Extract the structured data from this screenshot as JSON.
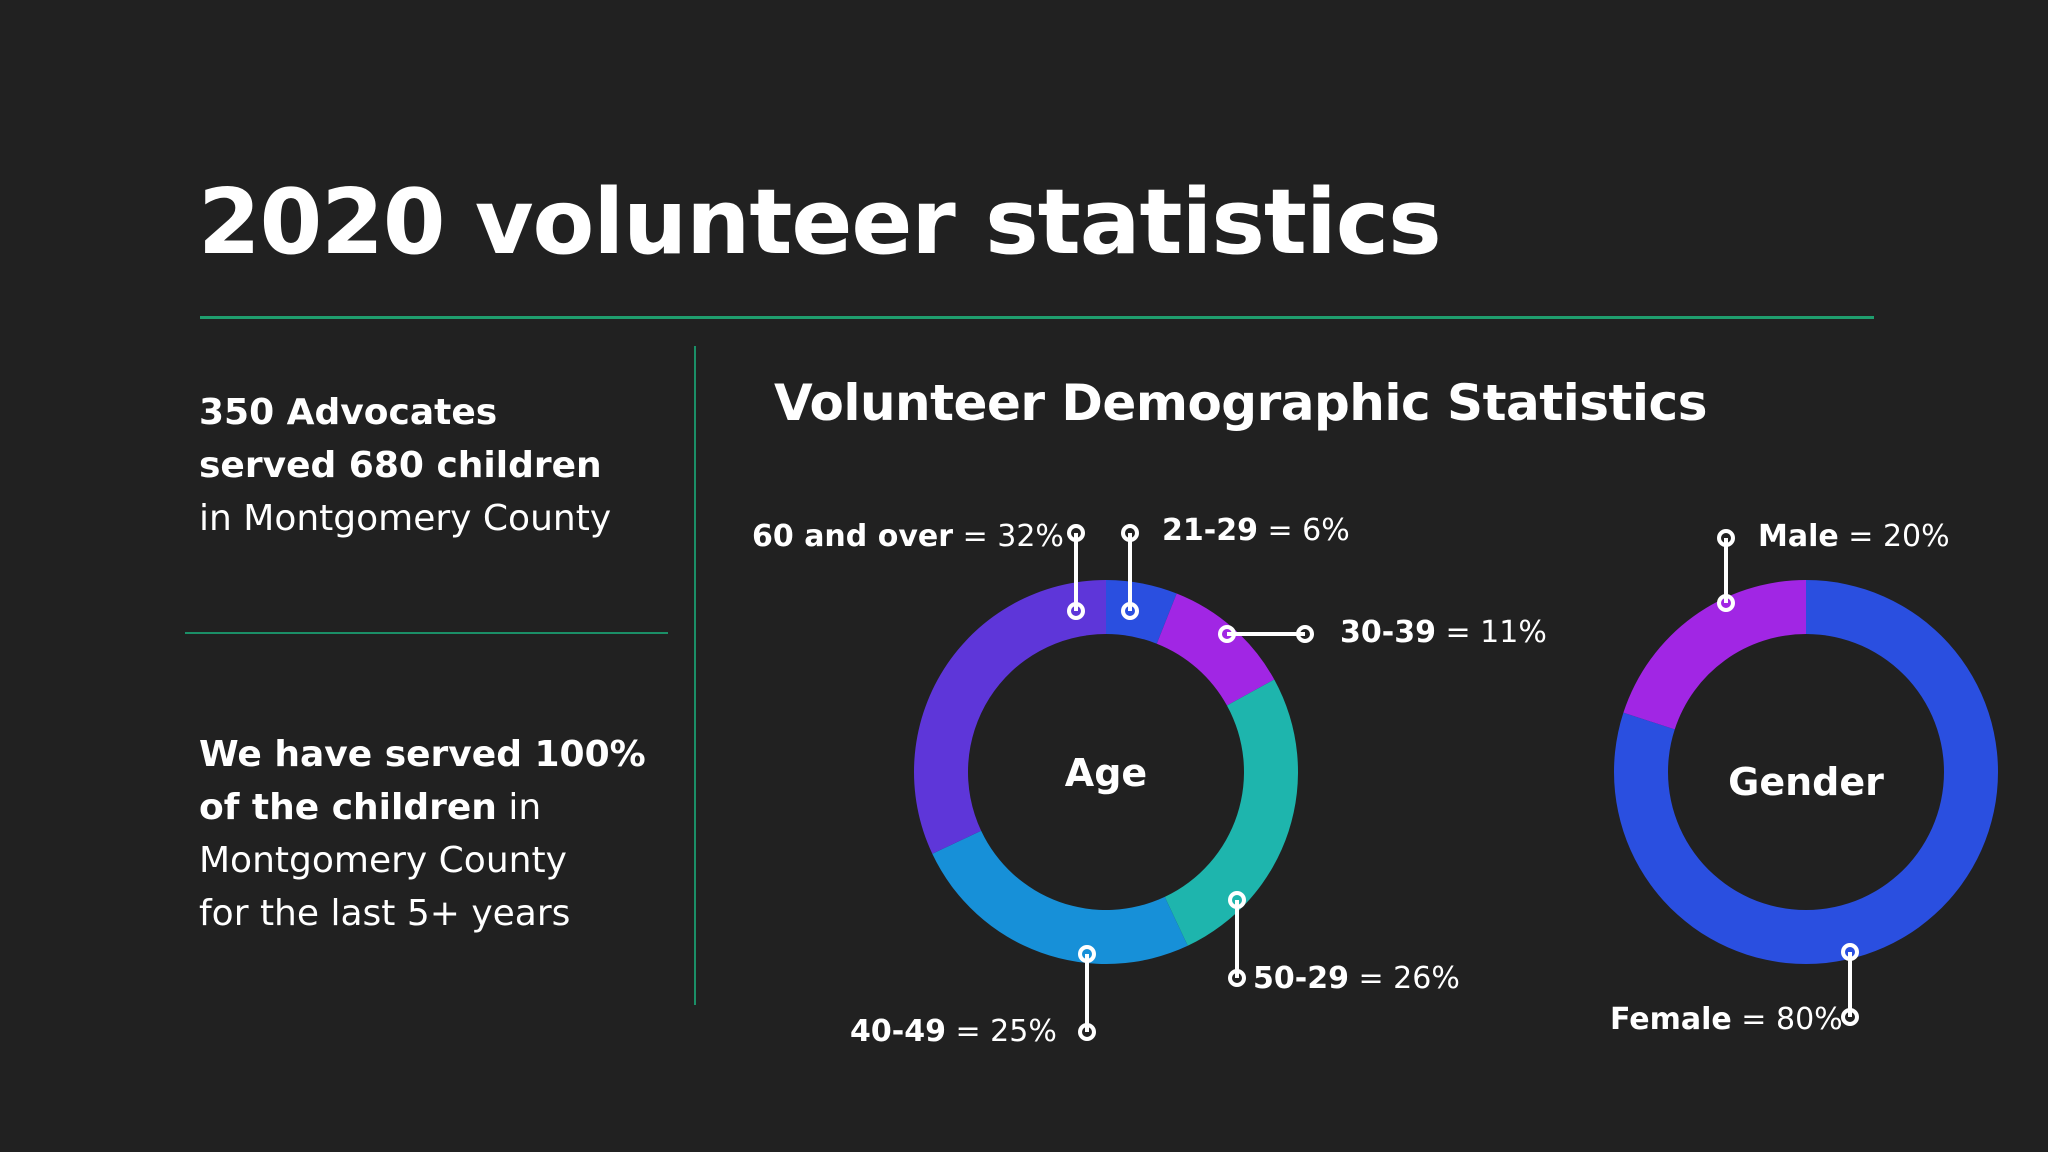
{
  "slide": {
    "title": "2020 volunteer statistics",
    "colors": {
      "background": "#212121",
      "rule": "#1f9e6e",
      "text": "#ffffff"
    }
  },
  "left_panel": {
    "stat1": {
      "line1_bold": "350 Advocates",
      "line2_bold": "served 680 children",
      "line3": "in Montgomery County"
    },
    "stat2": {
      "line1_bold": "We have served 100%",
      "line2_bold": "of the children",
      "line2_rest": " in",
      "line3": "Montgomery County",
      "line4": "for the last 5+ years"
    }
  },
  "right_panel": {
    "subtitle": "Volunteer Demographic Statistics"
  },
  "chart_data": [
    {
      "type": "pie",
      "title": "Age",
      "donut": true,
      "categories": [
        "21-29",
        "30-39",
        "50-29",
        "40-49",
        "60 and over"
      ],
      "values": [
        6,
        11,
        26,
        25,
        32
      ],
      "colors": [
        "#2a4fe0",
        "#a126e4",
        "#1eb5ad",
        "#1790d8",
        "#5e36d9"
      ],
      "labels": [
        {
          "key": "60 and over",
          "value": "32%"
        },
        {
          "key": "21-29",
          "value": "6%"
        },
        {
          "key": "30-39",
          "value": "11%"
        },
        {
          "key": "50-29",
          "value": "26%"
        },
        {
          "key": "40-49",
          "value": "25%"
        }
      ],
      "start_angle_deg": 0,
      "direction": "clockwise"
    },
    {
      "type": "pie",
      "title": "Gender",
      "donut": true,
      "categories": [
        "Female",
        "Male"
      ],
      "values": [
        80,
        20
      ],
      "colors": [
        "#2a4fe0",
        "#a126e4"
      ],
      "labels": [
        {
          "key": "Male",
          "value": "20%"
        },
        {
          "key": "Female",
          "value": "80%"
        }
      ],
      "start_angle_deg": 0,
      "direction": "clockwise"
    }
  ],
  "labels": {
    "age_60": {
      "key": "60 and over",
      "eq": " = ",
      "value": "32%"
    },
    "age_21": {
      "key": "21-29",
      "eq": " = ",
      "value": "6%"
    },
    "age_30": {
      "key": "30-39",
      "eq": " = ",
      "value": "11%"
    },
    "age_50": {
      "key": "50-29",
      "eq": " = ",
      "value": "26%"
    },
    "age_40": {
      "key": "40-49",
      "eq": " = ",
      "value": "25%"
    },
    "male": {
      "key": "Male",
      "eq": " = ",
      "value": "20%"
    },
    "female": {
      "key": "Female",
      "eq": " = ",
      "value": "80%"
    }
  }
}
